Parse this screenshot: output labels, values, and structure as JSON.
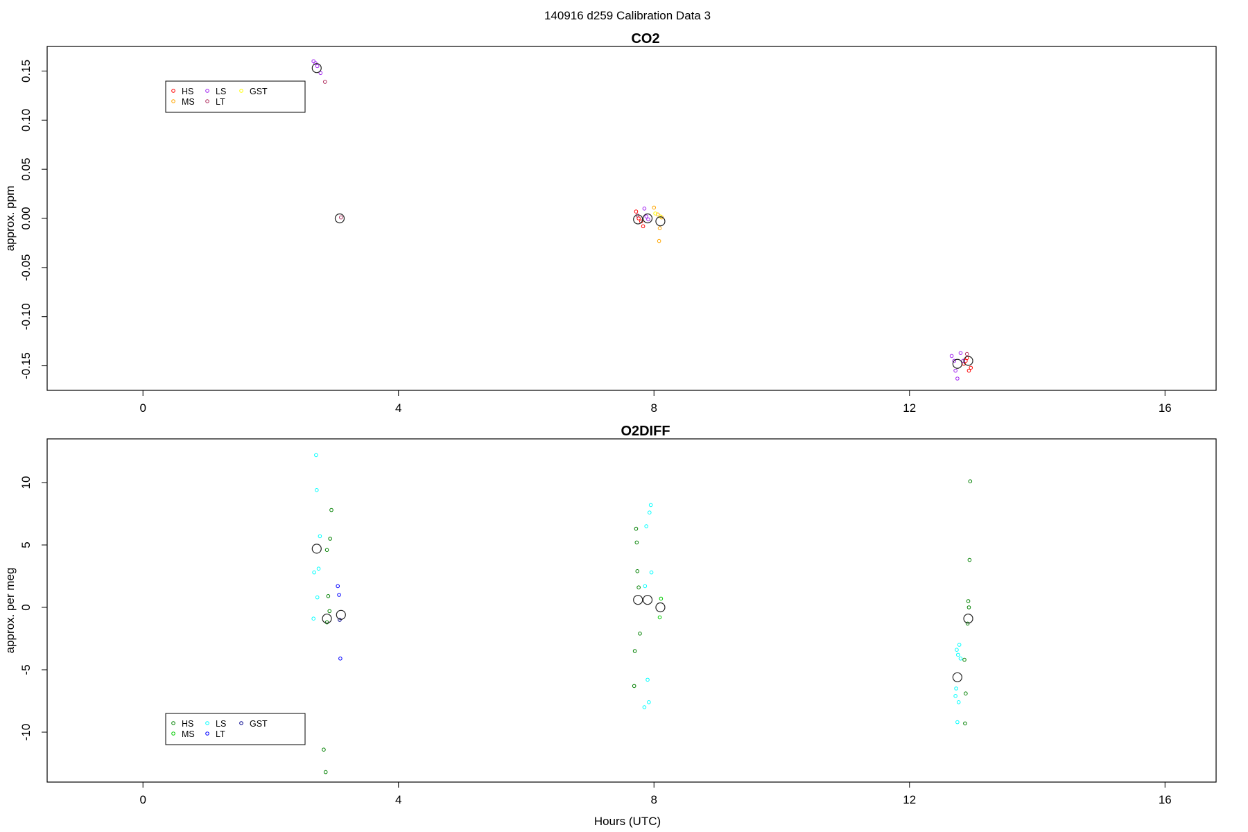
{
  "suptitle": "140916   d259   Calibration Data 3",
  "chart_data": [
    {
      "type": "scatter",
      "title": "CO2",
      "xlabel": "",
      "ylabel": "approx. ppm",
      "xlim": [
        -1.5,
        16.8
      ],
      "ylim": [
        -0.175,
        0.175
      ],
      "xticks": [
        0,
        4,
        8,
        12,
        16
      ],
      "xtick_labels": [
        "0",
        "4",
        "8",
        "12",
        "16"
      ],
      "yticks": [
        -0.15,
        -0.1,
        -0.05,
        0.0,
        0.05,
        0.1,
        0.15
      ],
      "ytick_labels": [
        "-0.15",
        "-0.10",
        "-0.05",
        "0.00",
        "0.05",
        "0.10",
        "0.15"
      ],
      "legend": {
        "position": "top-left",
        "entries": [
          {
            "label": "HS",
            "color": "#ff0000"
          },
          {
            "label": "MS",
            "color": "#ffa500"
          },
          {
            "label": "LS",
            "color": "#a020f0"
          },
          {
            "label": "LT",
            "color": "#b03060"
          },
          {
            "label": "GST",
            "color": "#ffff00"
          }
        ]
      },
      "series": [
        {
          "name": "HS",
          "color": "#ff0000",
          "points": [
            [
              7.72,
              0.007
            ],
            [
              7.76,
              0.0
            ],
            [
              7.8,
              -0.003
            ],
            [
              7.83,
              -0.008
            ],
            [
              12.85,
              -0.148
            ],
            [
              12.9,
              -0.142
            ],
            [
              12.93,
              -0.155
            ],
            [
              12.96,
              -0.152
            ],
            [
              12.88,
              -0.145
            ]
          ]
        },
        {
          "name": "MS",
          "color": "#ffa500",
          "points": [
            [
              8.0,
              0.011
            ],
            [
              8.06,
              0.004
            ],
            [
              8.09,
              -0.01
            ],
            [
              8.08,
              -0.023
            ],
            [
              8.12,
              0.001
            ]
          ]
        },
        {
          "name": "LS",
          "color": "#a020f0",
          "points": [
            [
              2.67,
              0.16
            ],
            [
              2.7,
              0.158
            ],
            [
              2.73,
              0.155
            ],
            [
              2.78,
              0.148
            ],
            [
              7.85,
              0.01
            ],
            [
              7.88,
              0.002
            ],
            [
              7.91,
              -0.001
            ],
            [
              12.66,
              -0.14
            ],
            [
              12.7,
              -0.145
            ],
            [
              12.72,
              -0.155
            ],
            [
              12.75,
              -0.163
            ],
            [
              12.8,
              -0.137
            ],
            [
              12.84,
              -0.145
            ]
          ]
        },
        {
          "name": "LT",
          "color": "#b03060",
          "points": [
            [
              3.1,
              0.001
            ],
            [
              2.85,
              0.139
            ],
            [
              7.74,
              0.003
            ],
            [
              12.9,
              -0.138
            ]
          ]
        },
        {
          "name": "GST",
          "color": "#ffff00",
          "points": [
            [
              8.02,
              0.005
            ],
            [
              8.1,
              0.002
            ]
          ]
        }
      ],
      "means": [
        [
          2.72,
          0.153
        ],
        [
          3.08,
          0.0
        ],
        [
          7.75,
          -0.001
        ],
        [
          7.9,
          0.0
        ],
        [
          8.1,
          -0.003
        ],
        [
          12.75,
          -0.148
        ],
        [
          12.92,
          -0.145
        ]
      ]
    },
    {
      "type": "scatter",
      "title": "O2DIFF",
      "xlabel": "Hours (UTC)",
      "ylabel": "approx. per meg",
      "xlim": [
        -1.5,
        16.8
      ],
      "ylim": [
        -14,
        13.5
      ],
      "xticks": [
        0,
        4,
        8,
        12,
        16
      ],
      "xtick_labels": [
        "0",
        "4",
        "8",
        "12",
        "16"
      ],
      "yticks": [
        -10,
        -5,
        0,
        5,
        10
      ],
      "ytick_labels": [
        "-10",
        "-5",
        "0",
        "5",
        "10"
      ],
      "legend": {
        "position": "bottom-left",
        "entries": [
          {
            "label": "HS",
            "color": "#008000"
          },
          {
            "label": "MS",
            "color": "#00cc00"
          },
          {
            "label": "LS",
            "color": "#00ffff"
          },
          {
            "label": "LT",
            "color": "#0000ff"
          },
          {
            "label": "GST",
            "color": "#00008b"
          }
        ]
      },
      "series": [
        {
          "name": "HS",
          "color": "#008000",
          "points": [
            [
              2.95,
              7.8
            ],
            [
              2.93,
              5.5
            ],
            [
              2.88,
              4.6
            ],
            [
              2.9,
              0.9
            ],
            [
              2.92,
              -0.3
            ],
            [
              2.88,
              -1.2
            ],
            [
              2.83,
              -11.4
            ],
            [
              2.86,
              -13.2
            ],
            [
              7.72,
              6.3
            ],
            [
              7.73,
              5.2
            ],
            [
              7.74,
              2.9
            ],
            [
              7.76,
              1.6
            ],
            [
              7.78,
              -2.1
            ],
            [
              7.7,
              -3.5
            ],
            [
              7.69,
              -6.3
            ],
            [
              12.95,
              10.1
            ],
            [
              12.94,
              3.8
            ],
            [
              12.92,
              0.5
            ],
            [
              12.93,
              0.0
            ],
            [
              12.91,
              -1.3
            ],
            [
              12.86,
              -4.2
            ],
            [
              12.88,
              -6.9
            ],
            [
              12.87,
              -9.3
            ]
          ]
        },
        {
          "name": "MS",
          "color": "#00cc00",
          "points": [
            [
              8.11,
              0.7
            ],
            [
              8.09,
              -0.8
            ]
          ]
        },
        {
          "name": "LS",
          "color": "#00ffff",
          "points": [
            [
              2.71,
              12.2
            ],
            [
              2.72,
              9.4
            ],
            [
              2.77,
              5.7
            ],
            [
              2.75,
              3.1
            ],
            [
              2.68,
              2.8
            ],
            [
              2.73,
              0.8
            ],
            [
              2.67,
              -0.9
            ],
            [
              7.95,
              8.2
            ],
            [
              7.93,
              7.6
            ],
            [
              7.88,
              6.5
            ],
            [
              7.96,
              2.8
            ],
            [
              7.86,
              1.7
            ],
            [
              7.9,
              -5.8
            ],
            [
              7.92,
              -7.6
            ],
            [
              7.85,
              -8.0
            ],
            [
              12.78,
              -3.0
            ],
            [
              12.74,
              -3.4
            ],
            [
              12.76,
              -3.8
            ],
            [
              12.8,
              -4.1
            ],
            [
              12.73,
              -6.5
            ],
            [
              12.72,
              -7.1
            ],
            [
              12.77,
              -7.6
            ],
            [
              12.75,
              -9.2
            ]
          ]
        },
        {
          "name": "LT",
          "color": "#0000ff",
          "points": [
            [
              3.05,
              1.7
            ],
            [
              3.07,
              1.0
            ],
            [
              3.09,
              -4.1
            ]
          ]
        },
        {
          "name": "GST",
          "color": "#00008b",
          "points": [
            [
              3.08,
              -1.0
            ]
          ]
        }
      ],
      "means": [
        [
          2.72,
          4.7
        ],
        [
          2.88,
          -0.9
        ],
        [
          3.1,
          -0.6
        ],
        [
          7.75,
          0.6
        ],
        [
          7.9,
          0.6
        ],
        [
          8.1,
          0.0
        ],
        [
          12.75,
          -5.6
        ],
        [
          12.92,
          -0.9
        ]
      ]
    }
  ]
}
